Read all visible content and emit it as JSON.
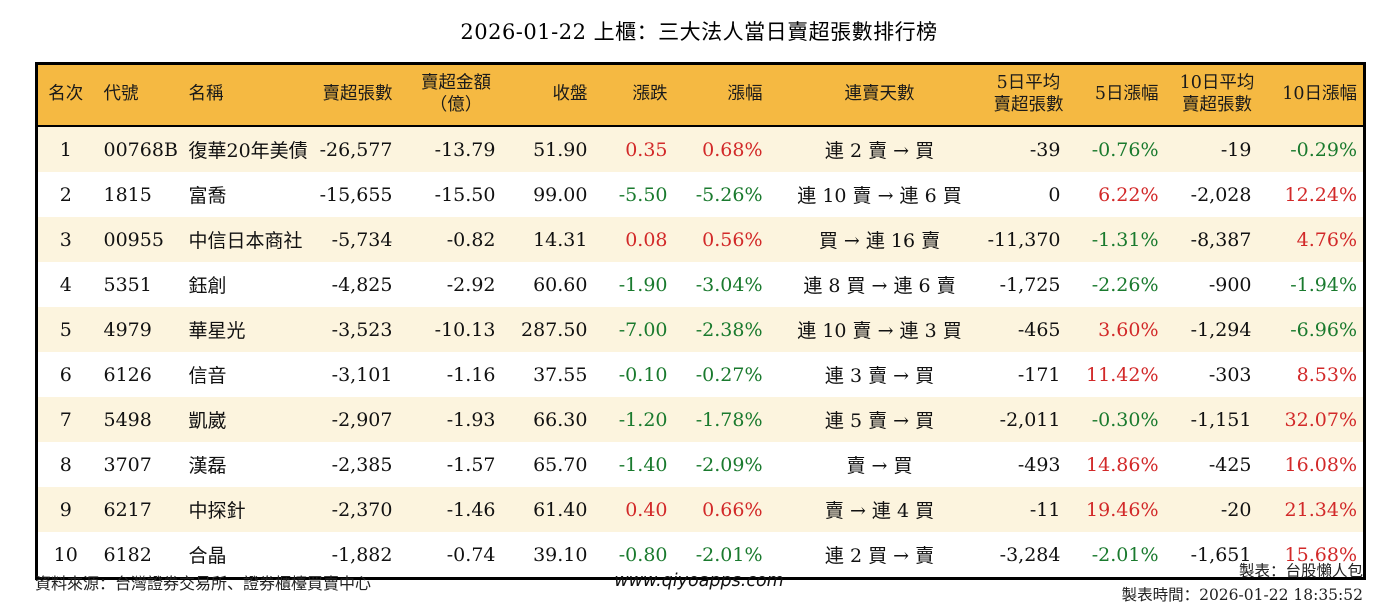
{
  "title": "2026-01-22 上櫃：三大法人當日賣超張數排行榜",
  "colors": {
    "header_bg": "#F5B942",
    "alt_row_bg": "#FCF4DE",
    "up_red": "#D22929",
    "down_green": "#1A7A2E",
    "border": "#000000"
  },
  "table": {
    "columns": [
      "名次",
      "代號",
      "名稱",
      "賣超張數",
      "賣超金額\n（億）",
      "收盤",
      "漲跌",
      "漲幅",
      "連賣天數",
      "5日平均\n賣超張數",
      "5日漲幅",
      "10日平均\n賣超張數",
      "10日漲幅"
    ],
    "rows": [
      [
        "1",
        "00768B",
        "復華20年美債",
        "-26,577",
        "-13.79",
        "51.90",
        {
          "t": "0.35",
          "c": "up"
        },
        {
          "t": "0.68%",
          "c": "up"
        },
        "連 2 賣 → 買",
        "-39",
        {
          "t": "-0.76%",
          "c": "down"
        },
        "-19",
        {
          "t": "-0.29%",
          "c": "down"
        }
      ],
      [
        "2",
        "1815",
        "富喬",
        "-15,655",
        "-15.50",
        "99.00",
        {
          "t": "-5.50",
          "c": "down"
        },
        {
          "t": "-5.26%",
          "c": "down"
        },
        "連 10 賣 → 連 6 買",
        "0",
        {
          "t": "6.22%",
          "c": "up"
        },
        "-2,028",
        {
          "t": "12.24%",
          "c": "up"
        }
      ],
      [
        "3",
        "00955",
        "中信日本商社",
        "-5,734",
        "-0.82",
        "14.31",
        {
          "t": "0.08",
          "c": "up"
        },
        {
          "t": "0.56%",
          "c": "up"
        },
        "買 → 連 16 賣",
        "-11,370",
        {
          "t": "-1.31%",
          "c": "down"
        },
        "-8,387",
        {
          "t": "4.76%",
          "c": "up"
        }
      ],
      [
        "4",
        "5351",
        "鈺創",
        "-4,825",
        "-2.92",
        "60.60",
        {
          "t": "-1.90",
          "c": "down"
        },
        {
          "t": "-3.04%",
          "c": "down"
        },
        "連 8 買 → 連 6 賣",
        "-1,725",
        {
          "t": "-2.26%",
          "c": "down"
        },
        "-900",
        {
          "t": "-1.94%",
          "c": "down"
        }
      ],
      [
        "5",
        "4979",
        "華星光",
        "-3,523",
        "-10.13",
        "287.50",
        {
          "t": "-7.00",
          "c": "down"
        },
        {
          "t": "-2.38%",
          "c": "down"
        },
        "連 10 賣 → 連 3 買",
        "-465",
        {
          "t": "3.60%",
          "c": "up"
        },
        "-1,294",
        {
          "t": "-6.96%",
          "c": "down"
        }
      ],
      [
        "6",
        "6126",
        "信音",
        "-3,101",
        "-1.16",
        "37.55",
        {
          "t": "-0.10",
          "c": "down"
        },
        {
          "t": "-0.27%",
          "c": "down"
        },
        "連 3 賣 → 買",
        "-171",
        {
          "t": "11.42%",
          "c": "up"
        },
        "-303",
        {
          "t": "8.53%",
          "c": "up"
        }
      ],
      [
        "7",
        "5498",
        "凱崴",
        "-2,907",
        "-1.93",
        "66.30",
        {
          "t": "-1.20",
          "c": "down"
        },
        {
          "t": "-1.78%",
          "c": "down"
        },
        "連 5 賣 → 買",
        "-2,011",
        {
          "t": "-0.30%",
          "c": "down"
        },
        "-1,151",
        {
          "t": "32.07%",
          "c": "up"
        }
      ],
      [
        "8",
        "3707",
        "漢磊",
        "-2,385",
        "-1.57",
        "65.70",
        {
          "t": "-1.40",
          "c": "down"
        },
        {
          "t": "-2.09%",
          "c": "down"
        },
        "賣 → 買",
        "-493",
        {
          "t": "14.86%",
          "c": "up"
        },
        "-425",
        {
          "t": "16.08%",
          "c": "up"
        }
      ],
      [
        "9",
        "6217",
        "中探針",
        "-2,370",
        "-1.46",
        "61.40",
        {
          "t": "0.40",
          "c": "up"
        },
        {
          "t": "0.66%",
          "c": "up"
        },
        "賣 → 連 4 買",
        "-11",
        {
          "t": "19.46%",
          "c": "up"
        },
        "-20",
        {
          "t": "21.34%",
          "c": "up"
        }
      ],
      [
        "10",
        "6182",
        "合晶",
        "-1,882",
        "-0.74",
        "39.10",
        {
          "t": "-0.80",
          "c": "down"
        },
        {
          "t": "-2.01%",
          "c": "down"
        },
        "連 2 買 → 賣",
        "-3,284",
        {
          "t": "-2.01%",
          "c": "down"
        },
        "-1,651",
        {
          "t": "15.68%",
          "c": "up"
        }
      ]
    ]
  },
  "footer": {
    "source": "資料來源：台灣證券交易所、證券櫃檯買賣中心",
    "website": "www.qiyoapps.com",
    "made_by": "製表：台股懶人包",
    "made_time": "製表時間：2026-01-22 18:35:52"
  }
}
